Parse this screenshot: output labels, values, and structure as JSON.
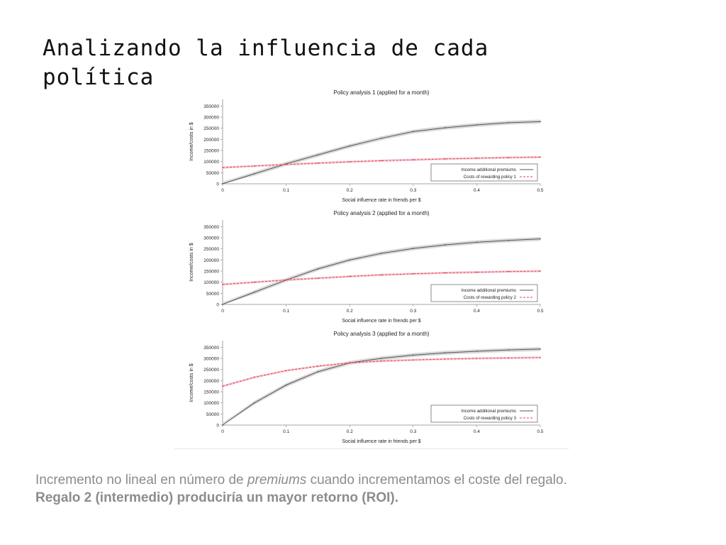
{
  "slide": {
    "title_line1": "Analizando la influencia de cada",
    "title_line2": "política",
    "caption": {
      "part1": "Incremento no lineal en número de ",
      "part2_italic": "premiums",
      "part3": " cuando incrementamos el coste del regalo.",
      "bold_line": "Regalo 2 (intermedio) produciría un mayor retorno (ROI)."
    }
  },
  "colors": {
    "income_line": "#555555",
    "income_band": "#cfcfcf",
    "cost_line": "#e0405a",
    "cost_band": "#f6c1cb"
  },
  "chart_data": [
    {
      "type": "line",
      "title": "Policy analysis 1 (applied for a month)",
      "xlabel": "Social influence rate in friends per $",
      "ylabel": "Income/costs in $",
      "xlim": [
        0,
        0.5
      ],
      "ylim": [
        0,
        380000
      ],
      "x_ticks": [
        "0",
        "0.1",
        "0.2",
        "0.3",
        "0.4",
        "0.5"
      ],
      "y_ticks": [
        "0",
        "50000",
        "100000",
        "150000",
        "200000",
        "250000",
        "300000",
        "350000"
      ],
      "legend_position": "bottom-right",
      "x": [
        0,
        0.05,
        0.1,
        0.15,
        0.2,
        0.25,
        0.3,
        0.35,
        0.4,
        0.45,
        0.5
      ],
      "series": [
        {
          "name": "Income additional premiums",
          "style": "solid",
          "values": [
            0,
            45000,
            90000,
            130000,
            170000,
            205000,
            235000,
            252000,
            265000,
            275000,
            280000
          ]
        },
        {
          "name": "Costs of rewarding policy 1",
          "style": "dashed",
          "values": [
            73000,
            80000,
            87000,
            93000,
            99000,
            104000,
            108000,
            112000,
            115000,
            118000,
            120000
          ]
        }
      ]
    },
    {
      "type": "line",
      "title": "Policy analysis 2 (applied for a month)",
      "xlabel": "Social influence rate in friends per $",
      "ylabel": "Income/costs in $",
      "xlim": [
        0,
        0.5
      ],
      "ylim": [
        0,
        380000
      ],
      "x_ticks": [
        "0",
        "0.1",
        "0.2",
        "0.3",
        "0.4",
        "0.5"
      ],
      "y_ticks": [
        "0",
        "50000",
        "100000",
        "150000",
        "200000",
        "250000",
        "300000",
        "350000"
      ],
      "legend_position": "bottom-right",
      "x": [
        0,
        0.05,
        0.1,
        0.15,
        0.2,
        0.25,
        0.3,
        0.35,
        0.4,
        0.45,
        0.5
      ],
      "series": [
        {
          "name": "Income additional premiums",
          "style": "solid",
          "values": [
            0,
            55000,
            110000,
            160000,
            200000,
            230000,
            252000,
            268000,
            280000,
            288000,
            295000
          ]
        },
        {
          "name": "Costs of rewarding policy 2",
          "style": "dashed",
          "values": [
            90000,
            100000,
            110000,
            118000,
            126000,
            133000,
            138000,
            142000,
            145000,
            148000,
            150000
          ]
        }
      ]
    },
    {
      "type": "line",
      "title": "Policy analysis 3 (applied for a month)",
      "xlabel": "Social influence rate in friends per $",
      "ylabel": "Income/costs in $",
      "xlim": [
        0,
        0.5
      ],
      "ylim": [
        0,
        380000
      ],
      "x_ticks": [
        "0",
        "0.1",
        "0.2",
        "0.3",
        "0.4",
        "0.5"
      ],
      "y_ticks": [
        "0",
        "50000",
        "100000",
        "150000",
        "200000",
        "250000",
        "300000",
        "350000"
      ],
      "legend_position": "bottom-right",
      "x": [
        0,
        0.05,
        0.1,
        0.15,
        0.2,
        0.25,
        0.3,
        0.35,
        0.4,
        0.45,
        0.5
      ],
      "series": [
        {
          "name": "Income additional premiums",
          "style": "solid",
          "values": [
            0,
            100000,
            180000,
            240000,
            280000,
            300000,
            315000,
            325000,
            332000,
            338000,
            342000
          ]
        },
        {
          "name": "Costs of rewarding policy 3",
          "style": "dashed",
          "values": [
            175000,
            215000,
            245000,
            265000,
            280000,
            288000,
            293000,
            297000,
            300000,
            302000,
            304000
          ]
        }
      ]
    }
  ]
}
